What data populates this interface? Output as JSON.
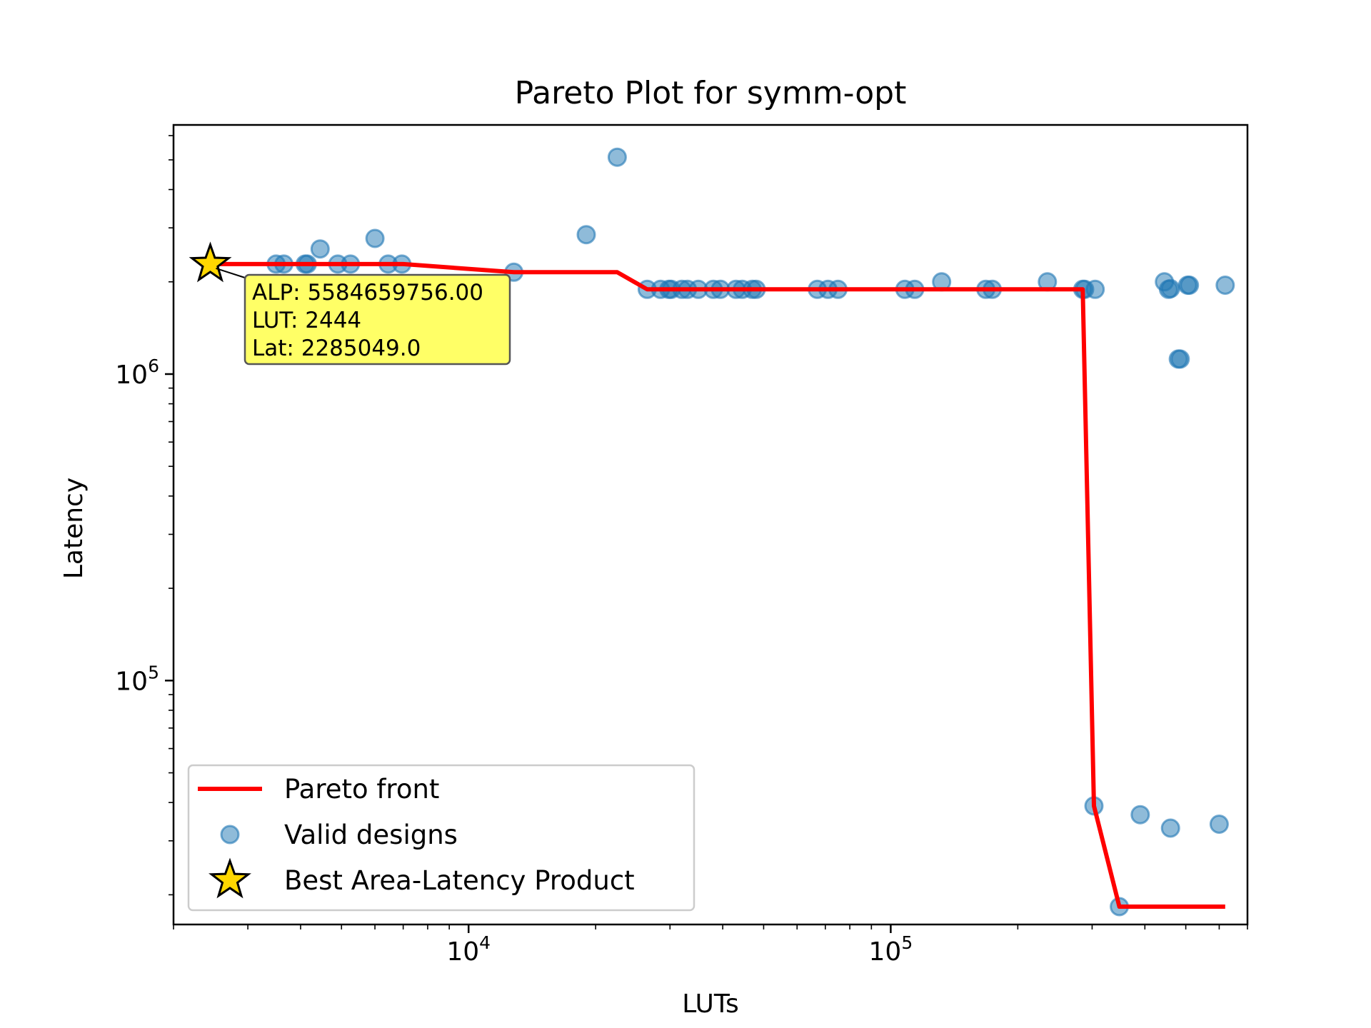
{
  "chart_data": {
    "type": "scatter",
    "title": "Pareto Plot for symm-opt",
    "xlabel": "LUTs",
    "ylabel": "Latency",
    "xscale": "log",
    "yscale": "log",
    "xlim": [
      2000,
      700000
    ],
    "ylim": [
      16000,
      6500000
    ],
    "grid": false,
    "legend_position": "lower-left",
    "x_ticks": [
      {
        "value": 10000,
        "base": "10",
        "exp": "4"
      },
      {
        "value": 100000,
        "base": "10",
        "exp": "5"
      }
    ],
    "y_ticks": [
      {
        "value": 100000,
        "base": "10",
        "exp": "5"
      },
      {
        "value": 1000000,
        "base": "10",
        "exp": "6"
      }
    ],
    "colors": {
      "pareto": "#ff0000",
      "points": "#1f77b4",
      "star": "#ffd700",
      "annotation_bg": "#ffff66"
    },
    "series": [
      {
        "name": "Valid designs",
        "kind": "scatter",
        "points": [
          [
            3500,
            2285049
          ],
          [
            3650,
            2285049
          ],
          [
            4100,
            2285049
          ],
          [
            4150,
            2285049
          ],
          [
            4450,
            2560000
          ],
          [
            4900,
            2285049
          ],
          [
            5250,
            2285049
          ],
          [
            6000,
            2770000
          ],
          [
            6450,
            2285049
          ],
          [
            6950,
            2285049
          ],
          [
            12800,
            2150000
          ],
          [
            19000,
            2850000
          ],
          [
            22500,
            5100000
          ],
          [
            26500,
            1890000
          ],
          [
            28500,
            1890000
          ],
          [
            29800,
            1890000
          ],
          [
            30200,
            1890000
          ],
          [
            32000,
            1890000
          ],
          [
            33000,
            1890000
          ],
          [
            35000,
            1890000
          ],
          [
            38000,
            1890000
          ],
          [
            39500,
            1890000
          ],
          [
            43000,
            1890000
          ],
          [
            44500,
            1890000
          ],
          [
            47000,
            1890000
          ],
          [
            48000,
            1890000
          ],
          [
            67000,
            1890000
          ],
          [
            71000,
            1890000
          ],
          [
            75000,
            1890000
          ],
          [
            108000,
            1890000
          ],
          [
            114000,
            1890000
          ],
          [
            132000,
            2000000
          ],
          [
            168000,
            1890000
          ],
          [
            174000,
            1890000
          ],
          [
            235000,
            2000000
          ],
          [
            285000,
            1890000
          ],
          [
            288000,
            1890000
          ],
          [
            305000,
            1890000
          ],
          [
            303000,
            39000
          ],
          [
            348000,
            18300
          ],
          [
            390000,
            36500
          ],
          [
            445000,
            2000000
          ],
          [
            455000,
            1890000
          ],
          [
            460000,
            1900000
          ],
          [
            460000,
            33000
          ],
          [
            480000,
            1120000
          ],
          [
            485000,
            1120000
          ],
          [
            505000,
            1950000
          ],
          [
            510000,
            1950000
          ],
          [
            600000,
            34000
          ],
          [
            620000,
            1950000
          ]
        ]
      },
      {
        "name": "Pareto front",
        "kind": "line",
        "points": [
          [
            2444,
            2285049
          ],
          [
            7000,
            2285049
          ],
          [
            12800,
            2150000
          ],
          [
            22500,
            2150000
          ],
          [
            26500,
            1890000
          ],
          [
            285000,
            1890000
          ],
          [
            303000,
            39000
          ],
          [
            348000,
            18300
          ],
          [
            620000,
            18300
          ]
        ]
      },
      {
        "name": "Best Area-Latency Product",
        "kind": "star",
        "points": [
          [
            2444,
            2285049
          ]
        ]
      }
    ],
    "annotation": {
      "lines": [
        "ALP: 5584659756.00",
        "LUT: 2444",
        "Lat: 2285049.0"
      ]
    }
  }
}
